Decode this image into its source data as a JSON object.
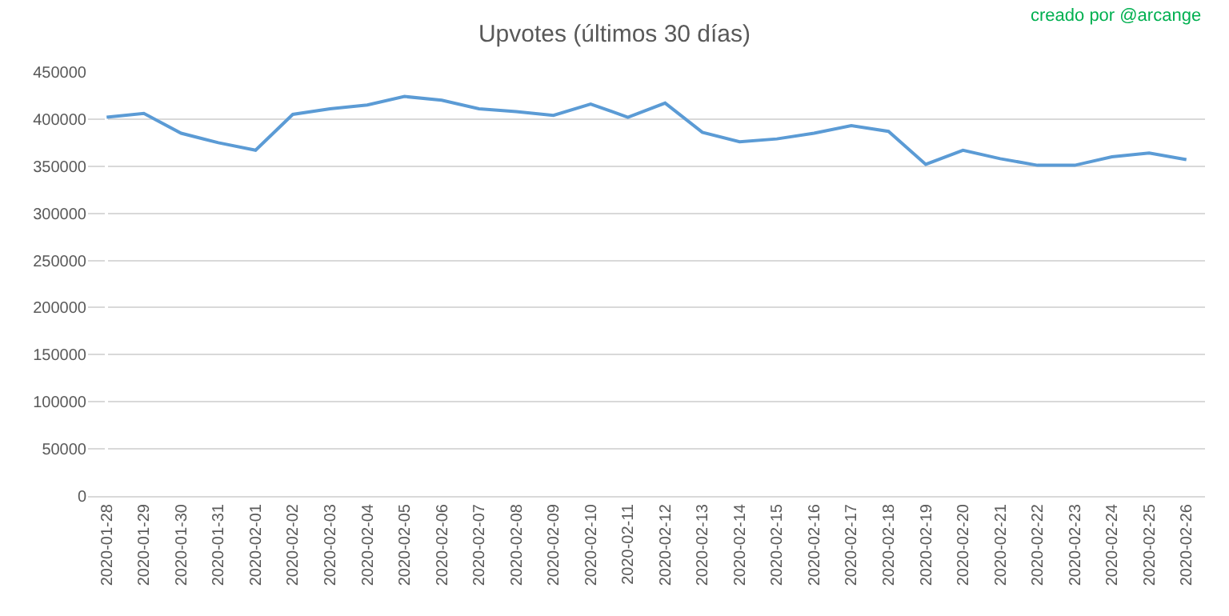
{
  "chart_data": {
    "type": "line",
    "title": "Upvotes (últimos 30 días)",
    "annotations": [
      "creado por @arcange"
    ],
    "categories": [
      "2020-01-28",
      "2020-01-29",
      "2020-01-30",
      "2020-01-31",
      "2020-02-01",
      "2020-02-02",
      "2020-02-03",
      "2020-02-04",
      "2020-02-05",
      "2020-02-06",
      "2020-02-07",
      "2020-02-08",
      "2020-02-09",
      "2020-02-10",
      "2020-02-11",
      "2020-02-12",
      "2020-02-13",
      "2020-02-14",
      "2020-02-15",
      "2020-02-16",
      "2020-02-17",
      "2020-02-18",
      "2020-02-19",
      "2020-02-20",
      "2020-02-21",
      "2020-02-22",
      "2020-02-23",
      "2020-02-24",
      "2020-02-25",
      "2020-02-26"
    ],
    "series": [
      {
        "color": "#5b9bd5",
        "values": [
          402000,
          406000,
          385000,
          375000,
          367000,
          405000,
          411000,
          415000,
          424000,
          420000,
          411000,
          408000,
          404000,
          416000,
          402000,
          417000,
          386000,
          376000,
          379000,
          385000,
          393000,
          387000,
          352000,
          367000,
          358000,
          351000,
          351000,
          360000,
          364000,
          357000
        ]
      }
    ],
    "ylim": [
      0,
      450000
    ],
    "yticks": [
      0,
      50000,
      100000,
      150000,
      200000,
      250000,
      300000,
      350000,
      400000,
      450000
    ],
    "grid": "y",
    "marker": "none",
    "line_style": "solid"
  }
}
